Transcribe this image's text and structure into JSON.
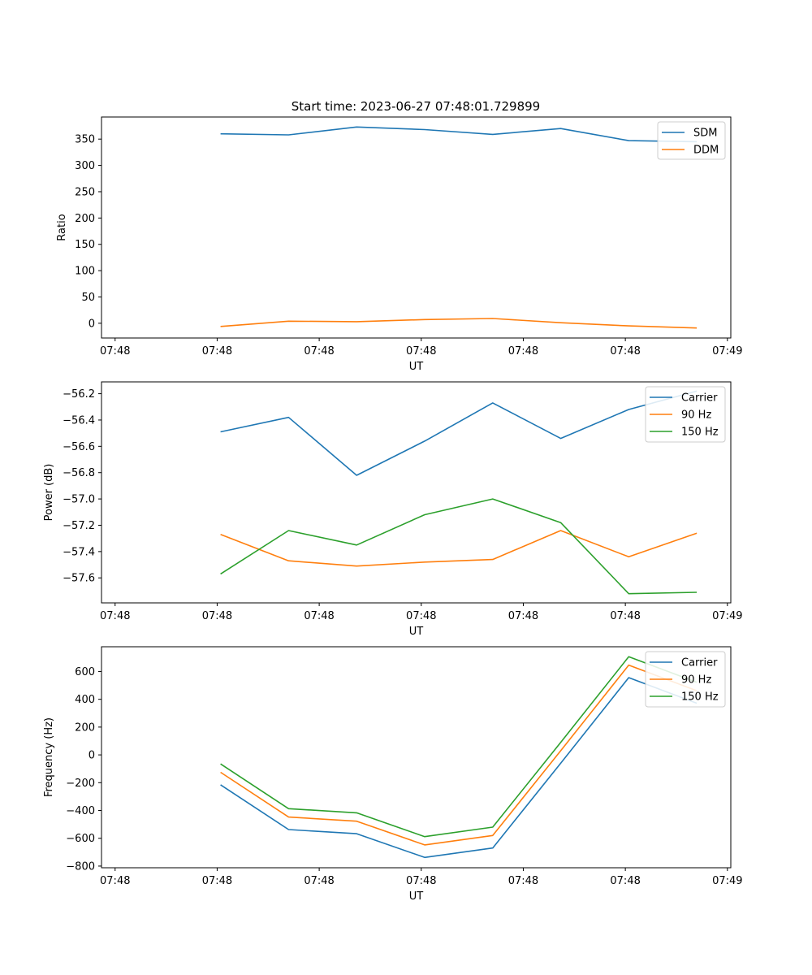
{
  "figure_title": "Start time: 2023-06-27 07:48:01.729899",
  "colors": {
    "blue": "#1f77b4",
    "orange": "#ff7f0e",
    "green": "#2ca02c"
  },
  "chart_data": [
    {
      "type": "line",
      "title": "Start time: 2023-06-27 07:48:01.729899",
      "xlabel": "UT",
      "ylabel": "Ratio",
      "x": [
        1,
        2,
        3,
        4,
        5,
        6,
        7,
        8
      ],
      "xlim": [
        -0.75,
        8.5
      ],
      "x_ticks": [
        -0.55,
        0.95,
        2.45,
        3.95,
        5.45,
        6.95,
        8.45
      ],
      "x_tick_labels": [
        "07:48",
        "07:48",
        "07:48",
        "07:48",
        "07:48",
        "07:48",
        "07:49"
      ],
      "ylim": [
        -28,
        392
      ],
      "y_ticks": [
        0,
        50,
        100,
        150,
        200,
        250,
        300,
        350
      ],
      "y_tick_labels": [
        "0",
        "50",
        "100",
        "150",
        "200",
        "250",
        "300",
        "350"
      ],
      "legend_position": "top-right",
      "series": [
        {
          "name": "SDM",
          "color": "#1f77b4",
          "values": [
            360,
            358,
            373,
            368,
            359,
            370,
            347,
            345
          ]
        },
        {
          "name": "DDM",
          "color": "#ff7f0e",
          "values": [
            -6,
            4,
            3,
            7,
            9,
            1,
            -5,
            -9
          ]
        }
      ]
    },
    {
      "type": "line",
      "xlabel": "UT",
      "ylabel": "Power (dB)",
      "x": [
        1,
        2,
        3,
        4,
        5,
        6,
        7,
        8
      ],
      "xlim": [
        -0.75,
        8.5
      ],
      "x_ticks": [
        -0.55,
        0.95,
        2.45,
        3.95,
        5.45,
        6.95,
        8.45
      ],
      "x_tick_labels": [
        "07:48",
        "07:48",
        "07:48",
        "07:48",
        "07:48",
        "07:48",
        "07:49"
      ],
      "ylim": [
        -57.79,
        -56.11
      ],
      "y_ticks": [
        -57.6,
        -57.4,
        -57.2,
        -57.0,
        -56.8,
        -56.6,
        -56.4,
        -56.2
      ],
      "y_tick_labels": [
        "−57.6",
        "−57.4",
        "−57.2",
        "−57.0",
        "−56.8",
        "−56.6",
        "−56.4",
        "−56.2"
      ],
      "legend_position": "top-right",
      "series": [
        {
          "name": "Carrier",
          "color": "#1f77b4",
          "values": [
            -56.49,
            -56.38,
            -56.82,
            -56.56,
            -56.27,
            -56.54,
            -56.32,
            -56.18
          ]
        },
        {
          "name": "90 Hz",
          "color": "#ff7f0e",
          "values": [
            -57.27,
            -57.47,
            -57.51,
            -57.48,
            -57.46,
            -57.24,
            -57.44,
            -57.26
          ]
        },
        {
          "name": "150 Hz",
          "color": "#2ca02c",
          "values": [
            -57.57,
            -57.24,
            -57.35,
            -57.12,
            -57.0,
            -57.18,
            -57.72,
            -57.71
          ]
        }
      ]
    },
    {
      "type": "line",
      "xlabel": "UT",
      "ylabel": "Frequency (Hz)",
      "x": [
        1,
        2,
        3,
        4,
        5,
        6,
        7,
        8
      ],
      "xlim": [
        -0.75,
        8.5
      ],
      "x_ticks": [
        -0.55,
        0.95,
        2.45,
        3.95,
        5.45,
        6.95,
        8.45
      ],
      "x_tick_labels": [
        "07:48",
        "07:48",
        "07:48",
        "07:48",
        "07:48",
        "07:48",
        "07:49"
      ],
      "ylim": [
        -812,
        778
      ],
      "y_ticks": [
        -800,
        -600,
        -400,
        -200,
        0,
        200,
        400,
        600
      ],
      "y_tick_labels": [
        "−800",
        "−600",
        "−400",
        "−200",
        "0",
        "200",
        "400",
        "600"
      ],
      "legend_position": "top-right",
      "series": [
        {
          "name": "Carrier",
          "color": "#1f77b4",
          "values": [
            -215,
            -537,
            -567,
            -738,
            -670,
            -60,
            556,
            372
          ]
        },
        {
          "name": "90 Hz",
          "color": "#ff7f0e",
          "values": [
            -125,
            -447,
            -477,
            -648,
            -580,
            30,
            646,
            462
          ]
        },
        {
          "name": "150 Hz",
          "color": "#2ca02c",
          "values": [
            -65,
            -387,
            -417,
            -588,
            -520,
            90,
            706,
            522
          ]
        }
      ]
    }
  ]
}
